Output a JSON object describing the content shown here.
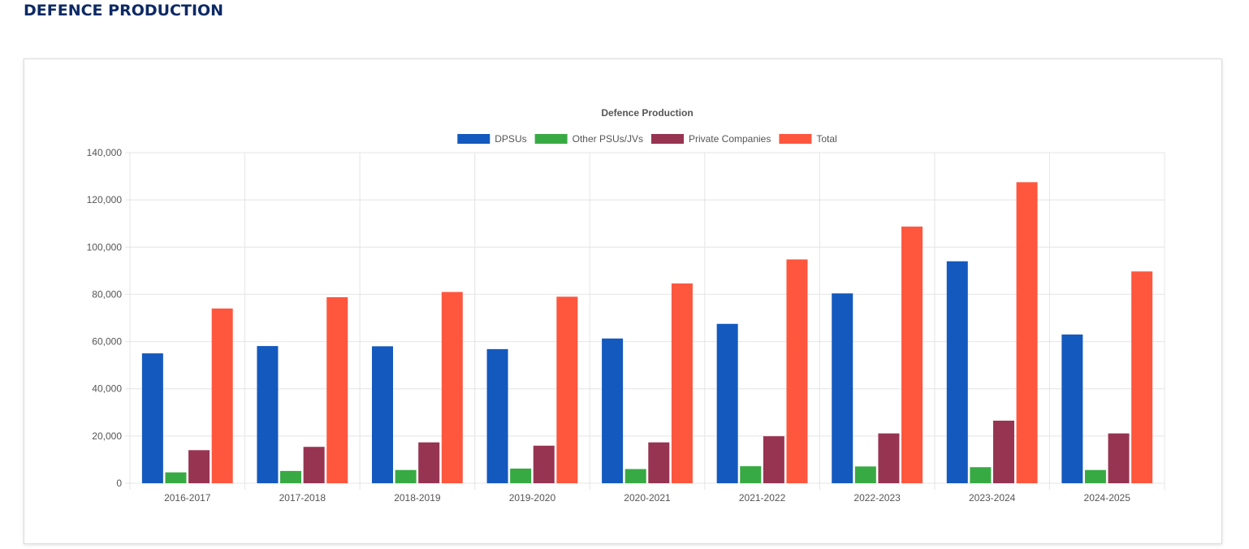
{
  "page": {
    "title": "DEFENCE PRODUCTION"
  },
  "colors": {
    "dpsus": "#1459be",
    "other_psus_jvs": "#38aa44",
    "private_companies": "#973452",
    "total": "#ff563e",
    "grid": "#e4e4e4",
    "text": "#555555"
  },
  "chart_data": {
    "type": "bar",
    "title": "Defence Production",
    "xlabel": "",
    "ylabel": "",
    "categories": [
      "2016-2017",
      "2017-2018",
      "2018-2019",
      "2019-2020",
      "2020-2021",
      "2021-2022",
      "2022-2023",
      "2023-2024",
      "2024-2025"
    ],
    "series": [
      {
        "name": "DPSUs",
        "color": "#1459be",
        "values": [
          55000,
          58100,
          58000,
          56800,
          61300,
          67500,
          80400,
          94000,
          63000
        ]
      },
      {
        "name": "Other PSUs/JVs",
        "color": "#38aa44",
        "values": [
          4600,
          5200,
          5600,
          6200,
          6000,
          7200,
          7100,
          6800,
          5600
        ]
      },
      {
        "name": "Private Companies",
        "color": "#973452",
        "values": [
          14000,
          15400,
          17300,
          15900,
          17300,
          19900,
          21100,
          26500,
          21100
        ]
      },
      {
        "name": "Total",
        "color": "#ff563e",
        "values": [
          74000,
          78800,
          81000,
          79000,
          84600,
          94800,
          108700,
          127500,
          89700
        ]
      }
    ],
    "ylim": [
      0,
      140000
    ],
    "yticks": [
      0,
      20000,
      40000,
      60000,
      80000,
      100000,
      120000,
      140000
    ],
    "ytick_labels": [
      "0",
      "20,000",
      "40,000",
      "60,000",
      "80,000",
      "100,000",
      "120,000",
      "140,000"
    ],
    "grid": true,
    "legend_position": "top-center"
  }
}
